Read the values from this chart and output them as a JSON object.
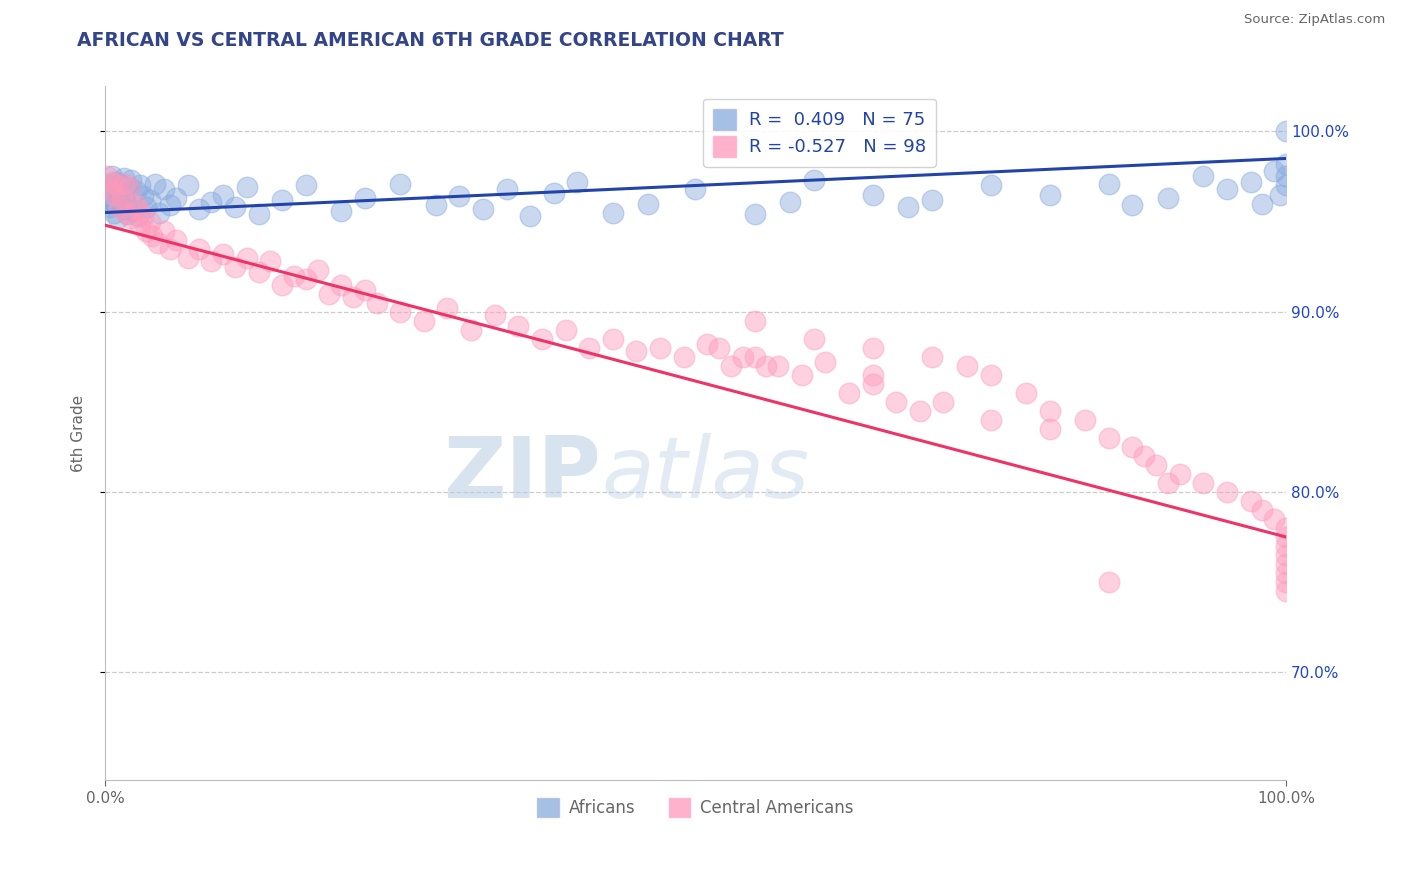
{
  "title": "AFRICAN VS CENTRAL AMERICAN 6TH GRADE CORRELATION CHART",
  "source": "Source: ZipAtlas.com",
  "ylabel": "6th Grade",
  "xlim": [
    0.0,
    100.0
  ],
  "ylim": [
    64.0,
    102.5
  ],
  "yticks": [
    70.0,
    80.0,
    90.0,
    100.0
  ],
  "xticks": [
    0,
    100
  ],
  "grid_color": "#cccccc",
  "blue_color": "#88aadd",
  "pink_color": "#ff99bb",
  "blue_line_color": "#2244aa",
  "pink_line_color": "#ee3366",
  "R_blue": 0.409,
  "N_blue": 75,
  "R_pink": -0.527,
  "N_pink": 98,
  "legend_labels": [
    "Africans",
    "Central Americans"
  ],
  "watermark_zip": "ZIP",
  "watermark_atlas": "atlas",
  "title_color": "#334488",
  "label_color": "#666666",
  "right_tick_color": "#2244cc",
  "blue_trend_start_y": 95.5,
  "blue_trend_end_y": 98.5,
  "pink_trend_start_y": 94.8,
  "pink_trend_end_y": 77.5,
  "blue_points_x": [
    0.2,
    0.3,
    0.4,
    0.5,
    0.6,
    0.7,
    0.8,
    0.9,
    1.0,
    1.1,
    1.2,
    1.3,
    1.4,
    1.5,
    1.6,
    1.7,
    1.8,
    1.9,
    2.0,
    2.2,
    2.4,
    2.6,
    2.8,
    3.0,
    3.2,
    3.5,
    3.8,
    4.2,
    4.6,
    5.0,
    5.5,
    6.0,
    7.0,
    8.0,
    9.0,
    10.0,
    11.0,
    12.0,
    13.0,
    15.0,
    17.0,
    20.0,
    22.0,
    25.0,
    28.0,
    30.0,
    32.0,
    34.0,
    36.0,
    38.0,
    40.0,
    43.0,
    46.0,
    50.0,
    55.0,
    58.0,
    60.0,
    65.0,
    68.0,
    70.0,
    75.0,
    80.0,
    85.0,
    87.0,
    90.0,
    93.0,
    95.0,
    97.0,
    98.0,
    99.0,
    99.5,
    100.0,
    100.0,
    100.0,
    100.0
  ],
  "blue_points_y": [
    96.5,
    97.0,
    95.8,
    96.2,
    97.5,
    96.0,
    95.5,
    97.2,
    96.8,
    95.2,
    96.5,
    97.1,
    95.9,
    96.3,
    97.4,
    95.7,
    96.1,
    95.4,
    96.9,
    97.3,
    95.6,
    96.7,
    95.3,
    97.0,
    96.4,
    95.8,
    96.2,
    97.1,
    95.5,
    96.8,
    95.9,
    96.3,
    97.0,
    95.7,
    96.1,
    96.5,
    95.8,
    96.9,
    95.4,
    96.2,
    97.0,
    95.6,
    96.3,
    97.1,
    95.9,
    96.4,
    95.7,
    96.8,
    95.3,
    96.6,
    97.2,
    95.5,
    96.0,
    96.8,
    95.4,
    96.1,
    97.3,
    96.5,
    95.8,
    96.2,
    97.0,
    96.5,
    97.1,
    95.9,
    96.3,
    97.5,
    96.8,
    97.2,
    96.0,
    97.8,
    96.5,
    97.0,
    97.5,
    98.2,
    100.0
  ],
  "pink_points_x": [
    0.2,
    0.4,
    0.6,
    0.8,
    1.0,
    1.2,
    1.4,
    1.6,
    1.8,
    2.0,
    2.2,
    2.5,
    2.8,
    3.0,
    3.2,
    3.5,
    3.8,
    4.0,
    4.5,
    5.0,
    5.5,
    6.0,
    7.0,
    8.0,
    9.0,
    10.0,
    11.0,
    12.0,
    13.0,
    14.0,
    15.0,
    16.0,
    17.0,
    18.0,
    19.0,
    20.0,
    21.0,
    22.0,
    23.0,
    25.0,
    27.0,
    29.0,
    31.0,
    33.0,
    35.0,
    37.0,
    39.0,
    41.0,
    43.0,
    45.0,
    47.0,
    49.0,
    51.0,
    53.0,
    55.0,
    57.0,
    59.0,
    61.0,
    63.0,
    65.0,
    52.0,
    54.0,
    56.0,
    65.0,
    67.0,
    69.0,
    71.0,
    75.0,
    80.0,
    85.0,
    90.0,
    55.0,
    60.0,
    65.0,
    70.0,
    73.0,
    75.0,
    78.0,
    80.0,
    83.0,
    85.0,
    87.0,
    88.0,
    89.0,
    91.0,
    93.0,
    95.0,
    97.0,
    98.0,
    99.0,
    100.0,
    100.0,
    100.0,
    100.0,
    100.0,
    100.0,
    100.0,
    100.0
  ],
  "pink_points_y": [
    97.5,
    96.8,
    97.2,
    96.5,
    97.0,
    95.8,
    96.3,
    97.1,
    95.5,
    96.9,
    95.2,
    96.0,
    95.7,
    94.8,
    95.3,
    94.5,
    95.0,
    94.2,
    93.8,
    94.5,
    93.5,
    94.0,
    93.0,
    93.5,
    92.8,
    93.2,
    92.5,
    93.0,
    92.2,
    92.8,
    91.5,
    92.0,
    91.8,
    92.3,
    91.0,
    91.5,
    90.8,
    91.2,
    90.5,
    90.0,
    89.5,
    90.2,
    89.0,
    89.8,
    89.2,
    88.5,
    89.0,
    88.0,
    88.5,
    87.8,
    88.0,
    87.5,
    88.2,
    87.0,
    87.5,
    87.0,
    86.5,
    87.2,
    85.5,
    86.0,
    88.0,
    87.5,
    87.0,
    86.5,
    85.0,
    84.5,
    85.0,
    84.0,
    83.5,
    75.0,
    80.5,
    89.5,
    88.5,
    88.0,
    87.5,
    87.0,
    86.5,
    85.5,
    84.5,
    84.0,
    83.0,
    82.5,
    82.0,
    81.5,
    81.0,
    80.5,
    80.0,
    79.5,
    79.0,
    78.5,
    78.0,
    77.5,
    77.0,
    76.5,
    76.0,
    75.5,
    75.0,
    74.5
  ]
}
